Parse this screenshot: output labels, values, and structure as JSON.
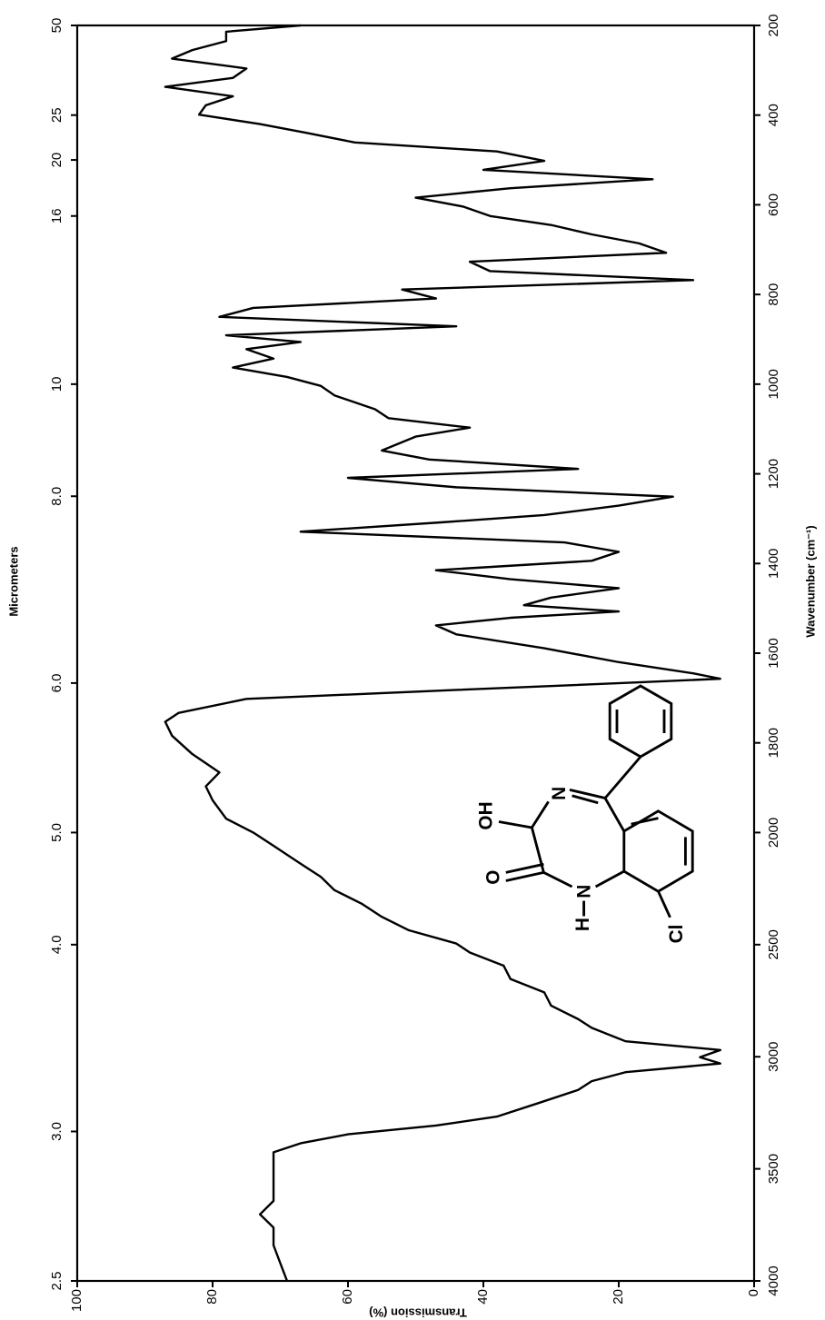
{
  "chart_data": {
    "type": "line",
    "x_label": "Wavenumber (cm⁻¹)",
    "x2_label": "Micrometers",
    "y_label": "Transmission (%)",
    "x": [
      4000,
      3921,
      3841,
      3762,
      3703,
      3643,
      3564,
      3485,
      3426,
      3386,
      3346,
      3307,
      3267,
      3208,
      3148,
      3109,
      3069,
      3030,
      3002,
      2970,
      2931,
      2871,
      2832,
      2772,
      2713,
      2653,
      2594,
      2535,
      2495,
      2436,
      2376,
      2317,
      2257,
      2198,
      2139,
      2059,
      2000,
      1969,
      1928,
      1897,
      1866,
      1825,
      1784,
      1753,
      1733,
      1702,
      1682,
      1665,
      1657,
      1645,
      1620,
      1589,
      1558,
      1538,
      1521,
      1507,
      1493,
      1476,
      1455,
      1435,
      1415,
      1394,
      1374,
      1353,
      1329,
      1308,
      1292,
      1271,
      1251,
      1230,
      1209,
      1189,
      1168,
      1148,
      1117,
      1097,
      1076,
      1056,
      1025,
      1004,
      984,
      963,
      943,
      922,
      906,
      891,
      871,
      850,
      830,
      809,
      789,
      768,
      748,
      727,
      707,
      686,
      666,
      645,
      625,
      604,
      584,
      563,
      543,
      522,
      502,
      481,
      461,
      440,
      420,
      399,
      378,
      358,
      337,
      317,
      296,
      274,
      255,
      235,
      214,
      200
    ],
    "series": [
      {
        "color": "#000000",
        "values": [
          69,
          70,
          71,
          71,
          73,
          71,
          71,
          71,
          71,
          67,
          60,
          47,
          38,
          32,
          26,
          24,
          19,
          5,
          8,
          5,
          19,
          24,
          26,
          30,
          31,
          36,
          37,
          42,
          44,
          51,
          55,
          58,
          62,
          64,
          67,
          71,
          74,
          78,
          80,
          81,
          79,
          83,
          86,
          87,
          85,
          75,
          44,
          17,
          5,
          9,
          20,
          31,
          44,
          47,
          36,
          20,
          34,
          30,
          20,
          36,
          47,
          24,
          20,
          28,
          67,
          46,
          31,
          20,
          12,
          44,
          60,
          26,
          48,
          55,
          50,
          42,
          54,
          56,
          62,
          64,
          69,
          77,
          71,
          75,
          67,
          78,
          44,
          79,
          74,
          47,
          52,
          9,
          39,
          42,
          13,
          17,
          24,
          30,
          39,
          43,
          50,
          36,
          15,
          40,
          31,
          38,
          59,
          66,
          73,
          82,
          81,
          77,
          87,
          77,
          75,
          86,
          83,
          78,
          78,
          67
        ]
      }
    ],
    "xlim": [
      4000,
      200
    ],
    "xticks": [
      4000,
      3500,
      3000,
      2500,
      2000,
      1800,
      1600,
      1400,
      1200,
      1000,
      800,
      600,
      400,
      200
    ],
    "x_scale_change": {
      "at": 2000,
      "factor": 2
    },
    "x2lim": [
      2.5,
      50
    ],
    "x2_scale": "reciprocal",
    "x2ticks": [
      2.5,
      {
        "value": 3,
        "label": "3.0"
      },
      {
        "value": 4,
        "label": "4.0"
      },
      {
        "value": 5,
        "label": "5.0"
      },
      {
        "value": 6,
        "label": "6.0"
      },
      {
        "value": 8,
        "label": "8.0"
      },
      10,
      16,
      20,
      25,
      50
    ],
    "ylim": [
      0,
      100
    ],
    "yticks": [
      0,
      20,
      40,
      60,
      80,
      100
    ],
    "grid": false,
    "annotations": [
      "H",
      "N",
      "O",
      "OH",
      "N",
      "Cl"
    ]
  }
}
